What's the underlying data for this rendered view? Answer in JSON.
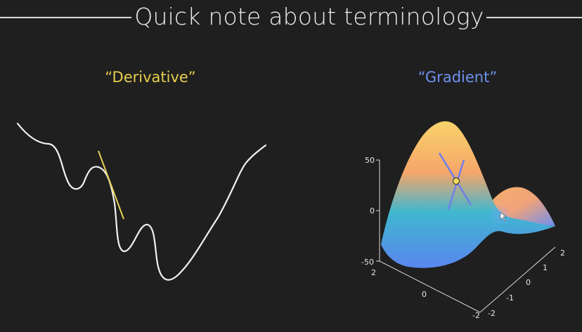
{
  "slide": {
    "title": "Quick note about terminology",
    "left_label": "“Derivative”",
    "right_label": "“Gradient”"
  },
  "colors": {
    "background": "#1f1f1f",
    "derivative_label": "#e7cd4c",
    "gradient_label": "#6f91ef",
    "curve": "#f2f2f2",
    "tangent": "#e6d157",
    "gradient_lines": "#6f7fe8"
  },
  "plot3d": {
    "z_ticks": [
      "50",
      "0",
      "-50"
    ],
    "x_ticks": [
      "2",
      "0",
      "-2"
    ],
    "y_ticks": [
      "-2",
      "-1",
      "0",
      "1",
      "2"
    ]
  }
}
